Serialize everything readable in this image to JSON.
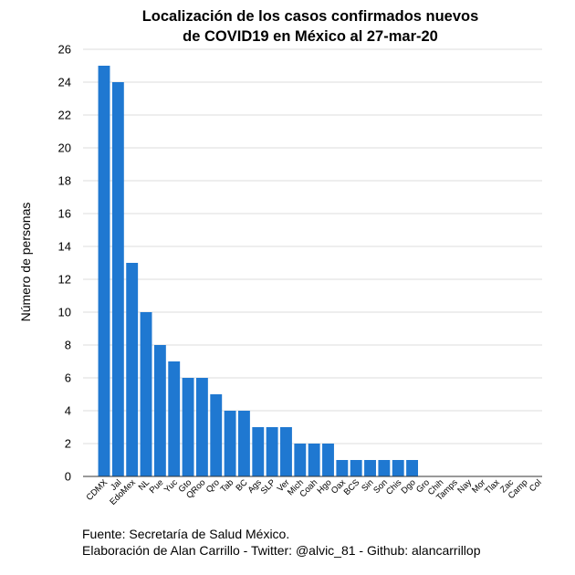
{
  "chart_data": {
    "type": "bar",
    "title_lines": [
      "Localización de los casos confirmados nuevos",
      "de COVID19 en México al 27-mar-20"
    ],
    "xlabel": "",
    "ylabel": "Número de personas",
    "ylim": [
      0,
      26
    ],
    "yticks": [
      0,
      2,
      4,
      6,
      8,
      10,
      12,
      14,
      16,
      18,
      20,
      22,
      24,
      26
    ],
    "grid": "horizontal",
    "bar_color": "#1f78d1",
    "categories": [
      "CDMX",
      "Jal",
      "EdoMex",
      "NL",
      "Pue",
      "Yuc",
      "Gto",
      "QRoo",
      "Qro",
      "Tab",
      "BC",
      "Ags",
      "SLP",
      "Ver",
      "Mich",
      "Coah",
      "Hgo",
      "Oax",
      "BCS",
      "Sin",
      "Son",
      "Chis",
      "Dgo",
      "Gro",
      "Chih",
      "Tamps",
      "Nay",
      "Mor",
      "Tlax",
      "Zac",
      "Camp",
      "Col"
    ],
    "values": [
      25,
      24,
      13,
      10,
      8,
      7,
      6,
      6,
      5,
      4,
      4,
      3,
      3,
      3,
      2,
      2,
      2,
      1,
      1,
      1,
      1,
      1,
      1,
      0,
      0,
      0,
      0,
      0,
      0,
      0,
      0,
      0
    ]
  },
  "caption": {
    "source": "Fuente: Secretaría de Salud México.",
    "author": "Elaboración de Alan Carrillo - Twitter: @alvic_81 - Github: alancarrillop"
  }
}
